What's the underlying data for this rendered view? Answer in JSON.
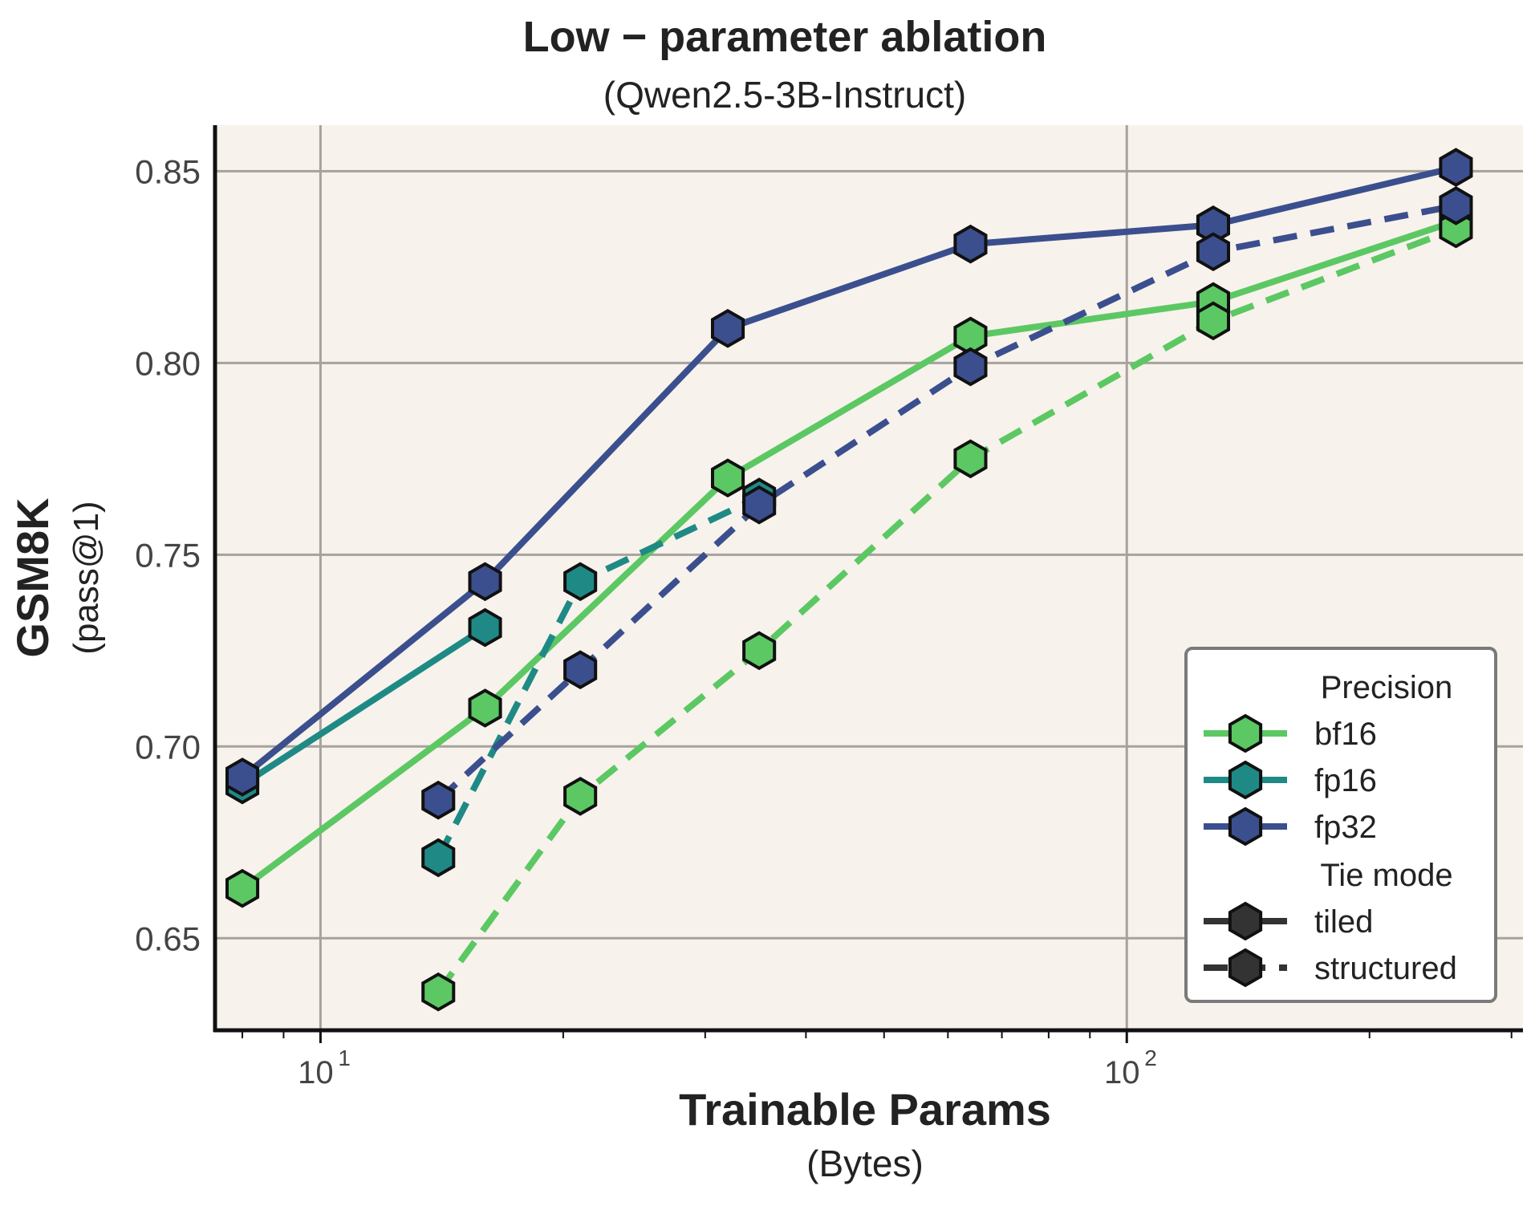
{
  "chart_data": {
    "type": "line",
    "title": "Low − parameter ablation",
    "subtitle": "(Qwen2.5-3B-Instruct)",
    "xlabel": "Trainable Params",
    "xlabel_sub": "(Bytes)",
    "ylabel": "GSM8K",
    "ylabel_sub": "(pass@1)",
    "x_scale": "log",
    "xlim": [
      7.4,
      310
    ],
    "ylim": [
      0.626,
      0.862
    ],
    "x_ticks": [
      {
        "value": 10,
        "base": "10",
        "exp": "1"
      },
      {
        "value": 100,
        "base": "10",
        "exp": "2"
      }
    ],
    "y_ticks": [
      {
        "value": 0.65,
        "label": "0.65"
      },
      {
        "value": 0.7,
        "label": "0.70"
      },
      {
        "value": 0.75,
        "label": "0.75"
      },
      {
        "value": 0.8,
        "label": "0.80"
      },
      {
        "value": 0.85,
        "label": "0.85"
      }
    ],
    "grid": true,
    "colors": {
      "bf16": "#5cc863",
      "fp16": "#1f8a85",
      "fp32": "#3b4f8e",
      "background": "#f7f2ec",
      "grid": "#a8a29c"
    },
    "series": [
      {
        "name": "bf16",
        "precision": "bf16",
        "tie_mode": "tiled",
        "x": [
          8,
          16,
          32,
          64,
          128,
          256
        ],
        "y": [
          0.663,
          0.71,
          0.77,
          0.807,
          0.816,
          0.837
        ]
      },
      {
        "name": "bf16",
        "precision": "bf16",
        "tie_mode": "structured",
        "x": [
          14,
          21,
          35,
          64,
          128,
          256
        ],
        "y": [
          0.636,
          0.687,
          0.725,
          0.775,
          0.811,
          0.835
        ]
      },
      {
        "name": "fp16",
        "precision": "fp16",
        "tie_mode": "tiled",
        "x": [
          8,
          16
        ],
        "y": [
          0.69,
          0.731
        ]
      },
      {
        "name": "fp16",
        "precision": "fp16",
        "tie_mode": "structured",
        "x": [
          14,
          21,
          35
        ],
        "y": [
          0.671,
          0.743,
          0.765
        ]
      },
      {
        "name": "fp32",
        "precision": "fp32",
        "tie_mode": "tiled",
        "x": [
          8,
          16,
          32,
          64,
          128,
          256
        ],
        "y": [
          0.692,
          0.743,
          0.809,
          0.831,
          0.836,
          0.851
        ]
      },
      {
        "name": "fp32",
        "precision": "fp32",
        "tie_mode": "structured",
        "x": [
          14,
          21,
          35,
          64,
          128,
          256
        ],
        "y": [
          0.686,
          0.72,
          0.763,
          0.799,
          0.829,
          0.841
        ]
      }
    ],
    "legend": {
      "position": "bottom-right",
      "precision_title": "Precision",
      "precision_items": [
        {
          "label": "bf16",
          "color": "#5cc863"
        },
        {
          "label": "fp16",
          "color": "#1f8a85"
        },
        {
          "label": "fp32",
          "color": "#3b4f8e"
        }
      ],
      "tie_title": "Tie mode",
      "tie_items": [
        {
          "label": "tiled",
          "style": "solid"
        },
        {
          "label": "structured",
          "style": "dashed"
        }
      ]
    }
  }
}
